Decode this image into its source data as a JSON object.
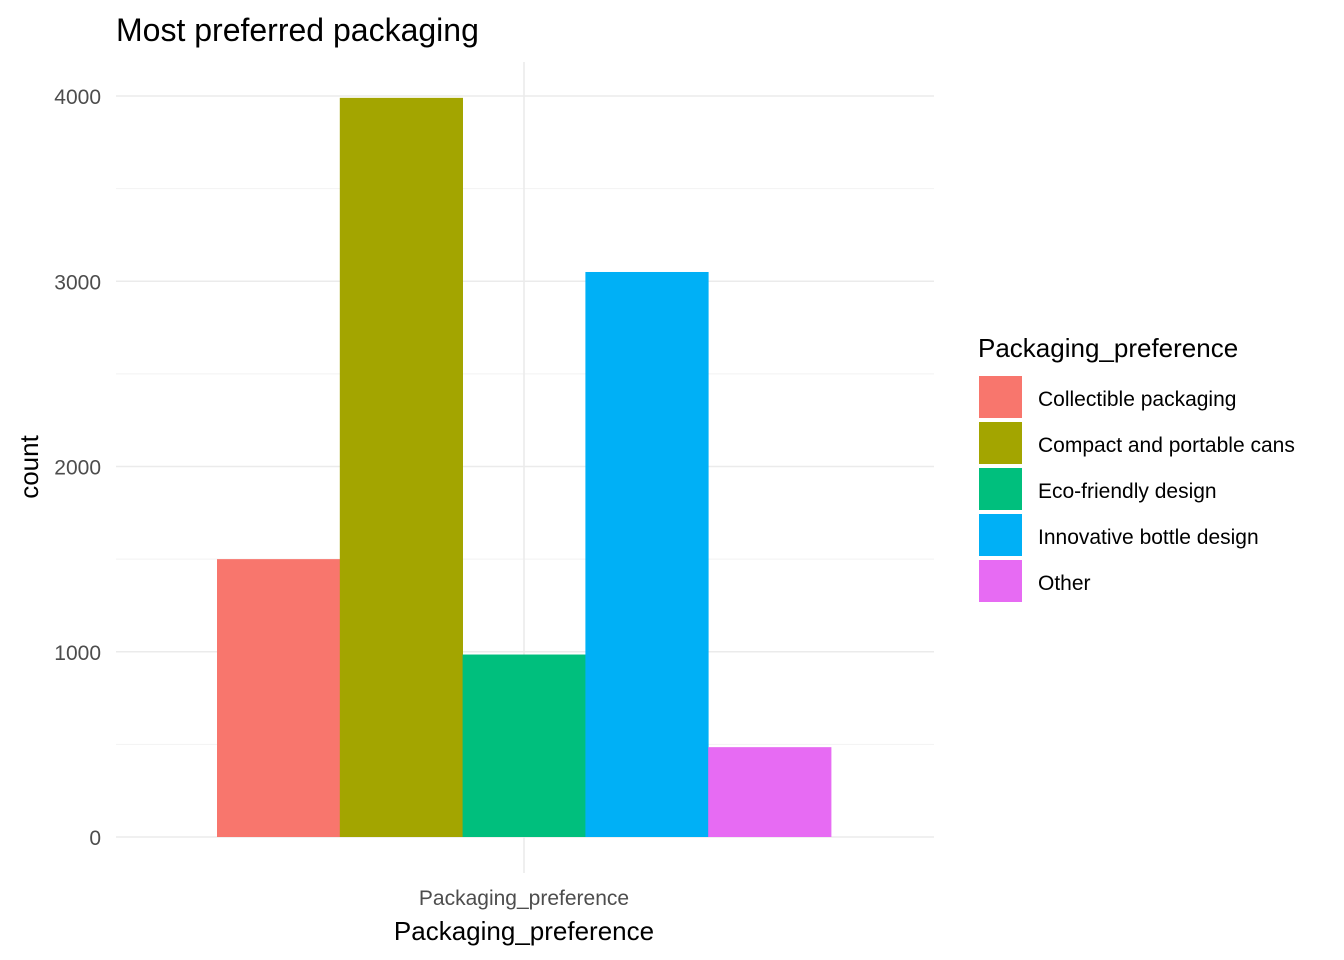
{
  "chart_data": {
    "type": "bar",
    "title": "Most preferred packaging",
    "xlabel": "Packaging_preference",
    "ylabel": "count",
    "x_tick_labels": [
      "Packaging_preference"
    ],
    "y_ticks": [
      0,
      1000,
      2000,
      3000,
      4000
    ],
    "ylim": [
      0,
      4200
    ],
    "grid": true,
    "legend": {
      "title": "Packaging_preference",
      "placement": "right"
    },
    "series": [
      {
        "name": "Collectible packaging",
        "value": 1500,
        "color": "#F8766D"
      },
      {
        "name": "Compact and portable cans",
        "value": 3990,
        "color": "#A3A500"
      },
      {
        "name": "Eco-friendly design",
        "value": 985,
        "color": "#00BF7D"
      },
      {
        "name": "Innovative bottle design",
        "value": 3050,
        "color": "#00B0F6"
      },
      {
        "name": "Other",
        "value": 485,
        "color": "#E76BF3"
      }
    ]
  }
}
